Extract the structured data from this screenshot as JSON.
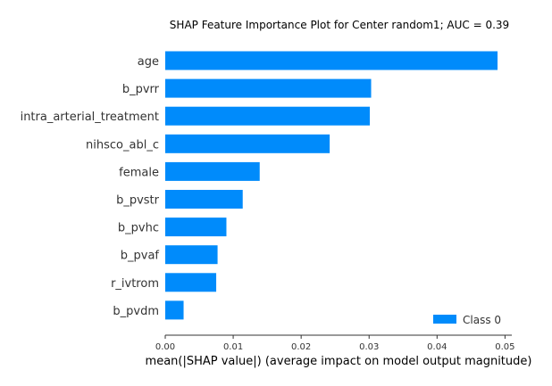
{
  "chart_data": {
    "type": "bar",
    "orientation": "horizontal",
    "title": "SHAP Feature Importance Plot for Center random1; AUC = 0.39",
    "xlabel": "mean(|SHAP value|) (average impact on model output magnitude)",
    "ylabel": "",
    "categories": [
      "age",
      "b_pvrr",
      "intra_arterial_treatment",
      "nihsco_abl_c",
      "female",
      "b_pvstr",
      "b_pvhc",
      "b_pvaf",
      "r_ivtrom",
      "b_pvdm"
    ],
    "series": [
      {
        "name": "Class 0",
        "color": "#008bfb",
        "values": [
          0.0489,
          0.0303,
          0.0301,
          0.0242,
          0.0139,
          0.0114,
          0.009,
          0.0077,
          0.0075,
          0.0027
        ]
      }
    ],
    "xlim": [
      0,
      0.051
    ],
    "xticks": [
      "0.00",
      "0.01",
      "0.02",
      "0.03",
      "0.04",
      "0.05"
    ],
    "grid": false,
    "legend_position": "bottom-right"
  }
}
